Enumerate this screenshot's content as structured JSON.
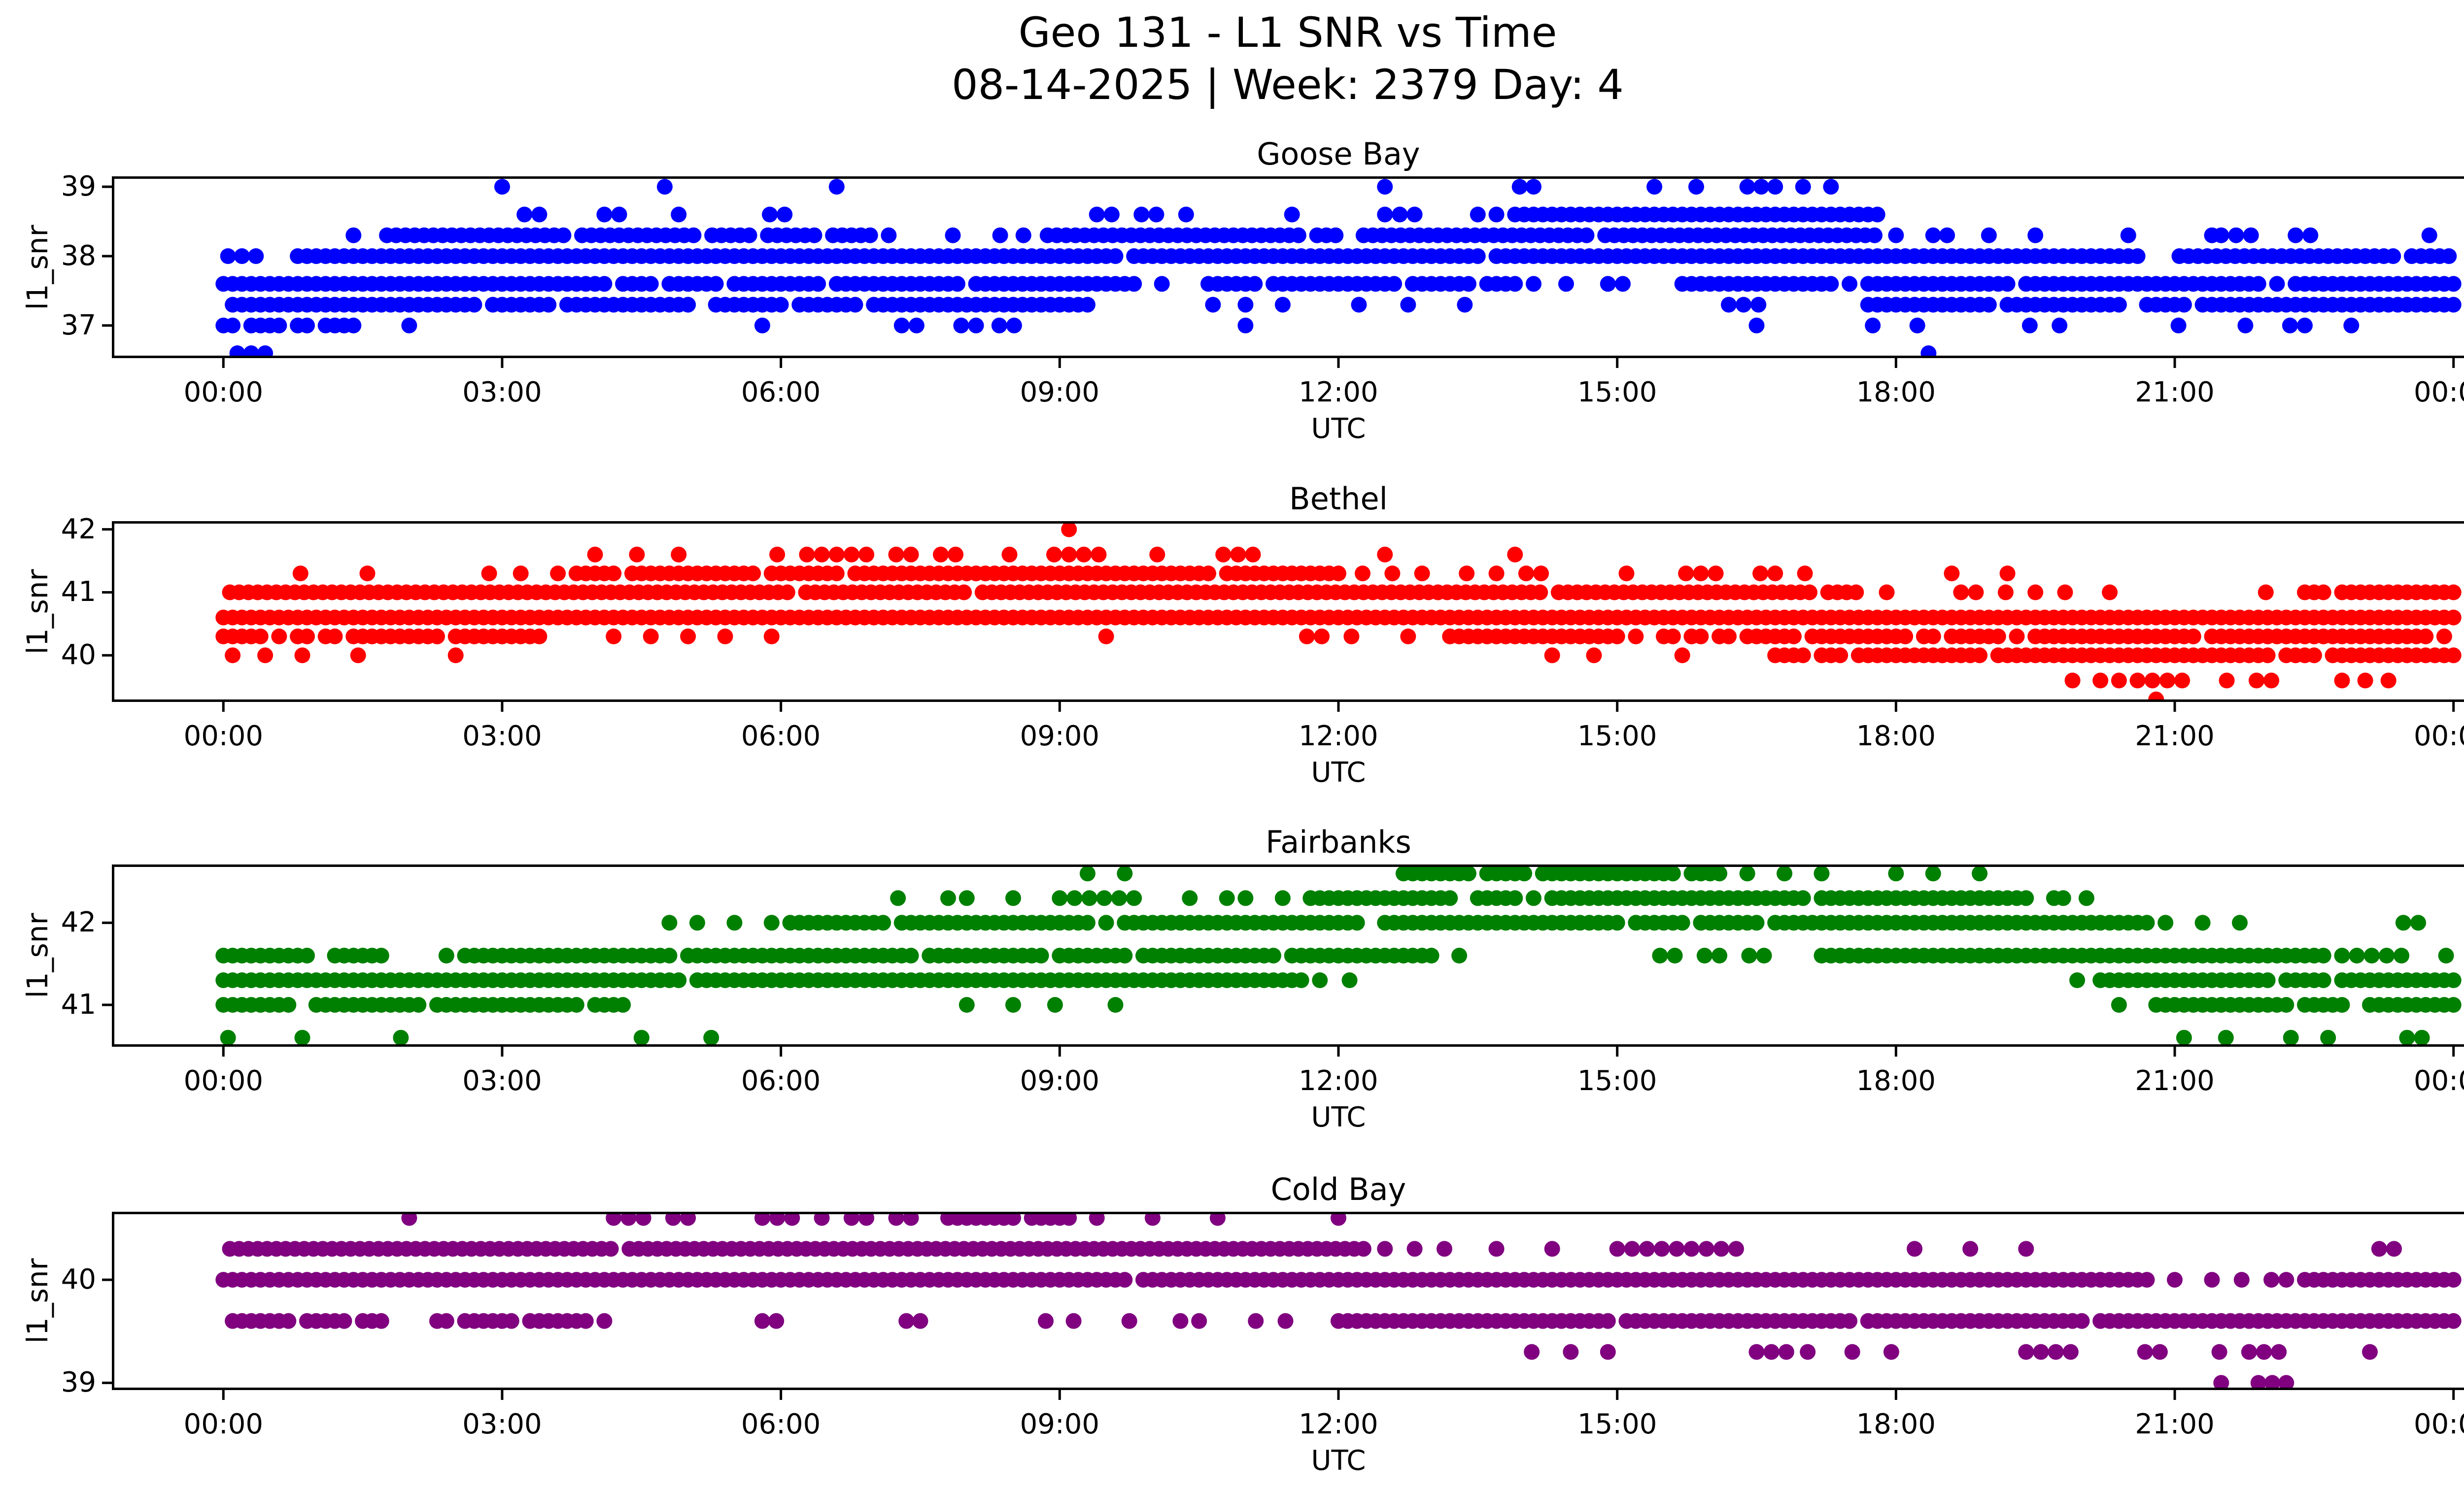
{
  "figure": {
    "title_line1": "Geo 131 - L1 SNR vs Time",
    "title_line2": "08-14-2025 | Week: 2379 Day: 4",
    "background": "#ffffff",
    "text_color": "#000000",
    "xlabel": "UTC",
    "ylabel": "l1_snr",
    "xtick_labels": [
      "00:00",
      "03:00",
      "06:00",
      "09:00",
      "12:00",
      "15:00",
      "18:00",
      "21:00",
      "00:00"
    ]
  },
  "chart_data": [
    {
      "type": "scatter",
      "title": "Goose Bay",
      "color": "#0000ff",
      "xlabel": "UTC",
      "ylabel": "l1_snr",
      "xticks_hours": [
        0,
        3,
        6,
        9,
        12,
        15,
        18,
        21,
        24
      ],
      "xlim": [
        -1.2,
        25.2
      ],
      "ylim": [
        36.53,
        39.15
      ],
      "yticks": [
        37,
        38,
        39
      ],
      "bands": [
        {
          "snr": 39.0,
          "segments": [],
          "dots": [
            3.0,
            4.75,
            6.6,
            12.5,
            13.95,
            14.1,
            15.4,
            15.85,
            16.4,
            16.55,
            16.7,
            17.0,
            17.3
          ]
        },
        {
          "snr": 38.6,
          "segments": [
            [
              2.6,
              3.4,
              0.5
            ],
            [
              4.1,
              5.0,
              0.55
            ],
            [
              5.4,
              6.1,
              0.5
            ],
            [
              9.4,
              10.5,
              0.6
            ],
            [
              12.5,
              13.35,
              0.5
            ],
            [
              13.5,
              17.8,
              0.92
            ]
          ],
          "dots": [
            11.5
          ]
        },
        {
          "snr": 38.3,
          "segments": [
            [
              1.76,
              7.17,
              0.93
            ],
            [
              8.87,
              17.85,
              0.95
            ],
            [
              21.5,
              23.8,
              0.5
            ]
          ],
          "dots": [
            1.4,
            7.85,
            8.36,
            8.61,
            18.0,
            18.4,
            18.55,
            19.0,
            19.5,
            20.5,
            21.4
          ]
        },
        {
          "snr": 38.0,
          "segments": [
            [
              0.8,
              20.66,
              0.98
            ],
            [
              21.05,
              24,
              0.96
            ]
          ],
          "dots": [
            0.05,
            0.2,
            0.35
          ]
        },
        {
          "snr": 37.6,
          "segments": [
            [
              0,
              9.8,
              0.97
            ],
            [
              10.6,
              13.9,
              0.92
            ],
            [
              14.9,
              15.3,
              0.5
            ],
            [
              15.7,
              17.35,
              0.85
            ],
            [
              17.5,
              24,
              0.97
            ]
          ],
          "dots": [
            10.1,
            14.1,
            14.45
          ]
        },
        {
          "snr": 37.3,
          "segments": [
            [
              0,
              9.3,
              0.95
            ],
            [
              11.9,
              12.3,
              0.5
            ],
            [
              13.2,
              13.4,
              0.5
            ],
            [
              16.2,
              16.65,
              0.6
            ],
            [
              17.7,
              24,
              0.96
            ]
          ],
          "dots": [
            10.65,
            11.0,
            11.4,
            12.75
          ]
        },
        {
          "snr": 37.0,
          "segments": [
            [
              0,
              1.45,
              0.9
            ],
            [
              3.0,
              3.3,
              0.5
            ],
            [
              7.3,
              8.2,
              0.6
            ],
            [
              8.35,
              8.7,
              0.5
            ],
            [
              17.75,
              18.35,
              0.4
            ],
            [
              18.8,
              20.2,
              0.6
            ],
            [
              20.4,
              21.35,
              0.55
            ],
            [
              21.6,
              22.4,
              0.5
            ]
          ],
          "dots": [
            2.0,
            5.8,
            11.0,
            16.5,
            22.9
          ]
        },
        {
          "snr": 36.6,
          "segments": [],
          "dots": [
            0.15,
            0.3,
            0.45,
            18.35
          ]
        }
      ]
    },
    {
      "type": "scatter",
      "title": "Bethel",
      "color": "#ff0000",
      "xlabel": "UTC",
      "ylabel": "l1_snr",
      "xticks_hours": [
        0,
        3,
        6,
        9,
        12,
        15,
        18,
        21,
        24
      ],
      "xlim": [
        -1.2,
        25.2
      ],
      "ylim": [
        39.26,
        42.13
      ],
      "yticks": [
        40,
        41,
        42
      ],
      "bands": [
        {
          "snr": 42.0,
          "segments": [],
          "dots": [
            9.1
          ]
        },
        {
          "snr": 41.6,
          "segments": [
            [
              5.8,
              8.0,
              0.6
            ],
            [
              8.3,
              9.6,
              0.65
            ],
            [
              10.6,
              11.3,
              0.5
            ]
          ],
          "dots": [
            4.0,
            4.45,
            4.9,
            10.05,
            12.5,
            13.9
          ]
        },
        {
          "snr": 41.3,
          "segments": [
            [
              2.0,
              2.2,
              0.5
            ],
            [
              2.7,
              3.0,
              0.5
            ],
            [
              3.5,
              12.0,
              0.95
            ],
            [
              12.1,
              14.2,
              0.55
            ],
            [
              15.1,
              17.1,
              0.6
            ],
            [
              23.2,
              23.5,
              0.5
            ]
          ],
          "dots": [
            0.83,
            1.55,
            3.2,
            18.6,
            19.2
          ]
        },
        {
          "snr": 41.0,
          "segments": [
            [
              0.07,
              17.6,
              0.98
            ],
            [
              17.9,
              20.45,
              0.55
            ],
            [
              22.4,
              24,
              0.9
            ]
          ],
          "dots": [
            21.98
          ]
        },
        {
          "snr": 40.6,
          "segments": [
            [
              0,
              24,
              0.99
            ]
          ],
          "dots": []
        },
        {
          "snr": 40.3,
          "segments": [
            [
              0,
              3.5,
              0.92
            ],
            [
              10.7,
              12.2,
              0.55
            ],
            [
              13.1,
              15.9,
              0.9
            ],
            [
              16.1,
              24,
              0.95
            ]
          ],
          "dots": [
            4.2,
            4.6,
            5.0,
            5.4,
            5.9,
            9.5,
            12.75
          ]
        },
        {
          "snr": 40.0,
          "segments": [
            [
              16.6,
              24,
              0.92
            ]
          ],
          "dots": [
            0.1,
            0.45,
            0.85,
            1.45,
            2.5,
            14.3,
            14.75,
            15.7
          ]
        },
        {
          "snr": 39.6,
          "segments": [
            [
              20.6,
              22.1,
              0.7
            ]
          ],
          "dots": [
            19.9,
            20.2,
            20.4,
            22.8,
            23.05,
            23.3
          ]
        },
        {
          "snr": 39.3,
          "segments": [],
          "dots": [
            20.8
          ]
        }
      ]
    },
    {
      "type": "scatter",
      "title": "Fairbanks",
      "color": "#008000",
      "xlabel": "UTC",
      "ylabel": "l1_snr",
      "xticks_hours": [
        0,
        3,
        6,
        9,
        12,
        15,
        18,
        21,
        24
      ],
      "xlim": [
        -1.2,
        25.2
      ],
      "ylim": [
        40.49,
        42.71
      ],
      "yticks": [
        41,
        42
      ],
      "bands": [
        {
          "snr": 42.6,
          "segments": [
            [
              12.7,
              16.1,
              0.88
            ]
          ],
          "dots": [
            9.3,
            9.7,
            16.4,
            16.8,
            17.2,
            18.0,
            18.4,
            18.9
          ]
        },
        {
          "snr": 42.3,
          "segments": [
            [
              9.0,
              9.9,
              0.75
            ],
            [
              11.7,
              19.8,
              0.96
            ]
          ],
          "dots": [
            7.26,
            7.8,
            8.0,
            8.5,
            10.4,
            10.8,
            11.0,
            11.4,
            20.05
          ]
        },
        {
          "snr": 42.0,
          "segments": [
            [
              6.1,
              20.7,
              0.95
            ],
            [
              23.3,
              23.8,
              0.6
            ]
          ],
          "dots": [
            4.8,
            5.1,
            5.5,
            5.9,
            20.9,
            21.3,
            21.7
          ]
        },
        {
          "snr": 41.6,
          "segments": [
            [
              0,
              1.7,
              0.9
            ],
            [
              2.4,
              13.05,
              0.96
            ],
            [
              15.3,
              16.7,
              0.7
            ],
            [
              17.2,
              22.6,
              0.94
            ],
            [
              22.8,
              24,
              0.8
            ]
          ],
          "dots": [
            13.3
          ]
        },
        {
          "snr": 41.3,
          "segments": [
            [
              0,
              11.6,
              0.96
            ],
            [
              11.8,
              12.3,
              0.5
            ],
            [
              20.2,
              24,
              0.95
            ]
          ],
          "dots": [
            19.95
          ]
        },
        {
          "snr": 41.0,
          "segments": [
            [
              0,
              4.3,
              0.95
            ],
            [
              20.8,
              24,
              0.92
            ]
          ],
          "dots": [
            8.0,
            8.5,
            8.95,
            9.6,
            20.4
          ]
        },
        {
          "snr": 40.6,
          "segments": [
            [
              1.75,
              2.6,
              0.5
            ],
            [
              23.5,
              23.8,
              0.5
            ]
          ],
          "dots": [
            0.05,
            0.85,
            4.5,
            5.25,
            21.1,
            21.55,
            22.25,
            22.65
          ]
        }
      ]
    },
    {
      "type": "scatter",
      "title": "Cold Bay",
      "color": "#800080",
      "xlabel": "UTC",
      "ylabel": "l1_snr",
      "xticks_hours": [
        0,
        3,
        6,
        9,
        12,
        15,
        18,
        21,
        24
      ],
      "xlim": [
        -1.2,
        25.2
      ],
      "ylim": [
        38.93,
        40.66
      ],
      "yticks": [
        39,
        40
      ],
      "bands": [
        {
          "snr": 40.6,
          "segments": [
            [
              4.2,
              5.2,
              0.55
            ],
            [
              5.8,
              7.4,
              0.7
            ],
            [
              7.8,
              9.1,
              0.85
            ]
          ],
          "dots": [
            2.0,
            9.4,
            10.0,
            10.7,
            12.0
          ]
        },
        {
          "snr": 40.3,
          "segments": [
            [
              0.07,
              12.3,
              0.97
            ],
            [
              12.5,
              13.2,
              0.5
            ],
            [
              15.0,
              16.5,
              0.7
            ],
            [
              23.2,
              23.5,
              0.5
            ]
          ],
          "dots": [
            13.7,
            14.3,
            18.2,
            18.8,
            19.4
          ]
        },
        {
          "snr": 40.0,
          "segments": [
            [
              0,
              20.7,
              0.99
            ],
            [
              21.4,
              22.4,
              0.7
            ],
            [
              22.4,
              24,
              0.95
            ]
          ],
          "dots": [
            21.0
          ]
        },
        {
          "snr": 39.6,
          "segments": [
            [
              0,
              1.7,
              0.9
            ],
            [
              2.3,
              4.1,
              0.9
            ],
            [
              10.95,
              11.75,
              0.5
            ],
            [
              12.0,
              24,
              0.96
            ]
          ],
          "dots": [
            5.8,
            5.95,
            7.35,
            7.5,
            8.85,
            9.15,
            9.75,
            10.3,
            10.5
          ]
        },
        {
          "snr": 39.3,
          "segments": [
            [
              13.6,
              14.1,
              0.6
            ],
            [
              16.5,
              16.9,
              0.6
            ],
            [
              17.05,
              17.6,
              0.6
            ],
            [
              19.4,
              22.25,
              0.65
            ]
          ],
          "dots": [
            14.5,
            14.9,
            17.95,
            23.1
          ]
        },
        {
          "snr": 39.0,
          "segments": [],
          "dots": [
            21.5,
            21.9,
            22.05,
            22.2
          ]
        }
      ]
    }
  ]
}
